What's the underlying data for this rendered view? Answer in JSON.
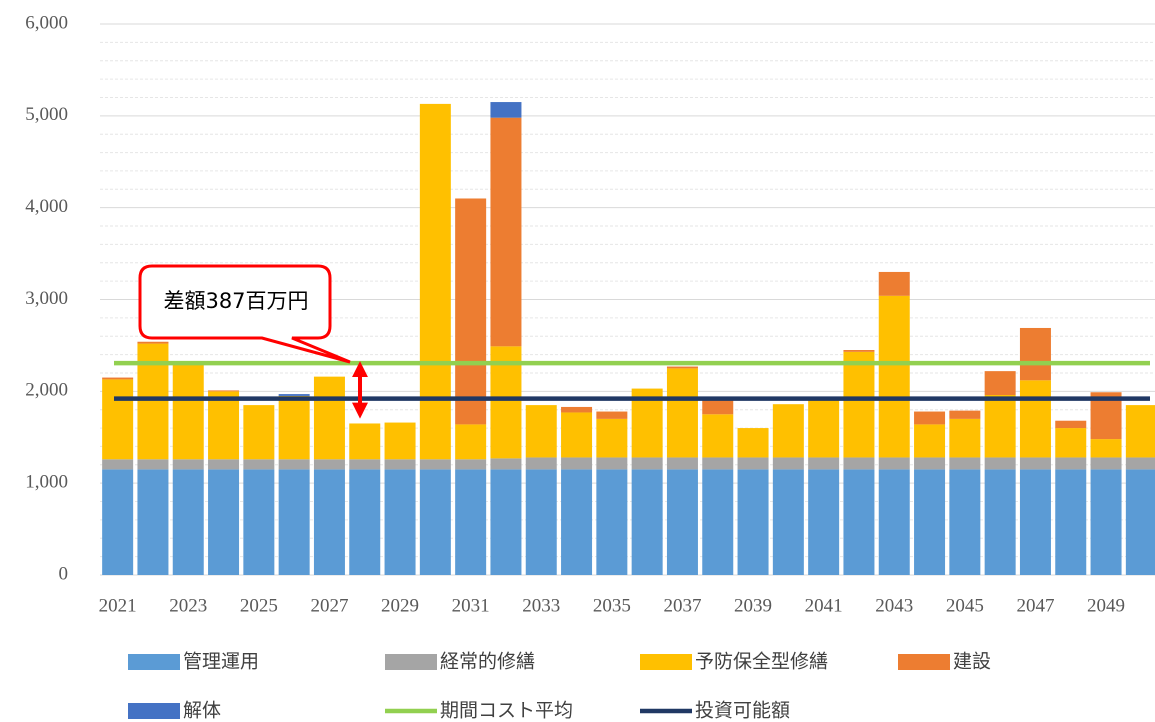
{
  "chart_data": {
    "type": "stacked_bar",
    "categories": [
      "2021",
      null,
      "2023",
      null,
      "2025",
      null,
      "2027",
      null,
      "2029",
      null,
      "2031",
      null,
      "2033",
      null,
      "2035",
      null,
      "2037",
      null,
      "2039",
      null,
      "2041",
      null,
      "2043",
      null,
      "2045",
      null,
      "2047",
      null,
      "2049",
      null
    ],
    "series": [
      {
        "name": "管理運用",
        "color": "#5b9bd5",
        "values": [
          1150,
          1150,
          1150,
          1150,
          1150,
          1150,
          1150,
          1150,
          1150,
          1150,
          1150,
          1150,
          1150,
          1150,
          1150,
          1150,
          1150,
          1150,
          1150,
          1150,
          1150,
          1150,
          1150,
          1150,
          1150,
          1150,
          1150,
          1150,
          1150,
          1150
        ]
      },
      {
        "name": "経常的修繕",
        "color": "#a5a5a5",
        "values": [
          110,
          110,
          110,
          110,
          110,
          110,
          110,
          110,
          110,
          110,
          110,
          120,
          130,
          130,
          130,
          130,
          130,
          130,
          130,
          130,
          130,
          130,
          130,
          130,
          130,
          130,
          130,
          130,
          130,
          130
        ]
      },
      {
        "name": "予防保全型修繕",
        "color": "#ffc000",
        "values": [
          870,
          1260,
          1030,
          740,
          590,
          690,
          900,
          390,
          400,
          3870,
          380,
          1220,
          570,
          490,
          420,
          750,
          970,
          470,
          320,
          580,
          620,
          1150,
          1760,
          360,
          420,
          680,
          840,
          320,
          200,
          570
        ]
      },
      {
        "name": "建設",
        "color": "#ed7d31",
        "values": [
          20,
          20,
          0,
          10,
          0,
          0,
          0,
          0,
          0,
          0,
          2460,
          2490,
          0,
          60,
          80,
          0,
          20,
          150,
          0,
          0,
          0,
          20,
          260,
          140,
          90,
          260,
          570,
          80,
          510,
          0
        ]
      },
      {
        "name": "解体",
        "color": "#4472c4",
        "values": [
          0,
          0,
          0,
          0,
          0,
          20,
          0,
          0,
          0,
          0,
          0,
          170,
          0,
          0,
          0,
          0,
          0,
          0,
          0,
          0,
          0,
          0,
          0,
          0,
          0,
          0,
          0,
          0,
          0,
          0
        ]
      }
    ],
    "lines": [
      {
        "name": "期間コスト平均",
        "color": "#92d050",
        "value": 2307
      },
      {
        "name": "投資可能額",
        "color": "#203864",
        "value": 1920
      }
    ],
    "annotation": "差額387百万円",
    "ylim": [
      0,
      6000
    ],
    "yticks": [
      0,
      {
        "value": 1000,
        "label": "1,000"
      },
      {
        "value": 2000,
        "label": "2,000"
      },
      {
        "value": 3000,
        "label": "3,000"
      },
      {
        "value": 4000,
        "label": "4,000"
      },
      {
        "value": 5000,
        "label": "5,000"
      },
      {
        "value": 6000,
        "label": "6,000"
      }
    ],
    "grid": true
  }
}
